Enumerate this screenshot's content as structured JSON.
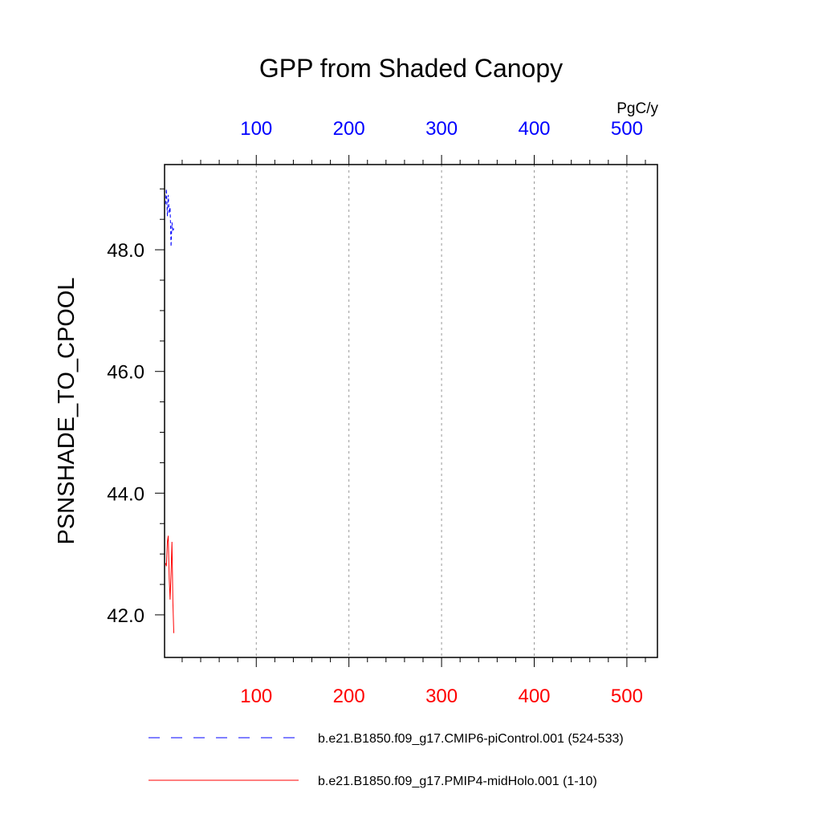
{
  "chart_data": {
    "type": "line",
    "title": "GPP from Shaded Canopy",
    "ylabel": "PSNSHADE_TO_CPOOL",
    "units": "PgC/y",
    "ylim": [
      41.3,
      49.4
    ],
    "yticks_major": [
      42.0,
      44.0,
      46.0,
      48.0
    ],
    "yticks_labels": [
      "42.0",
      "44.0",
      "46.0",
      "48.0"
    ],
    "top_axis": {
      "ticks": [
        100,
        200,
        300,
        400,
        500
      ],
      "labels": [
        "100",
        "200",
        "300",
        "400",
        "500"
      ],
      "color": "#0000ff"
    },
    "bottom_axis": {
      "ticks": [
        100,
        200,
        300,
        400,
        500
      ],
      "labels": [
        "100",
        "200",
        "300",
        "400",
        "500"
      ],
      "color": "#ff0000"
    },
    "xlim": [
      1,
      533
    ],
    "grid": "vertical-dotted",
    "series": [
      {
        "name": "b.e21.B1850.f09_g17.CMIP6-piControl.001 (524-533)",
        "color": "#0000ff",
        "dash": "dashed",
        "x": [
          2,
          3,
          4,
          5,
          6,
          7,
          8,
          9,
          10,
          11
        ],
        "y": [
          48.75,
          49.0,
          48.55,
          48.9,
          48.6,
          48.7,
          48.05,
          48.45,
          48.3,
          48.35
        ]
      },
      {
        "name": "b.e21.B1850.f09_g17.PMIP4-midHolo.001 (1-10)",
        "color": "#ff0000",
        "dash": "solid",
        "x": [
          2,
          3,
          4,
          5,
          6,
          7,
          8,
          9,
          10,
          11
        ],
        "y": [
          42.85,
          42.8,
          43.2,
          43.3,
          42.6,
          42.25,
          42.7,
          43.2,
          42.2,
          41.7
        ]
      }
    ]
  }
}
